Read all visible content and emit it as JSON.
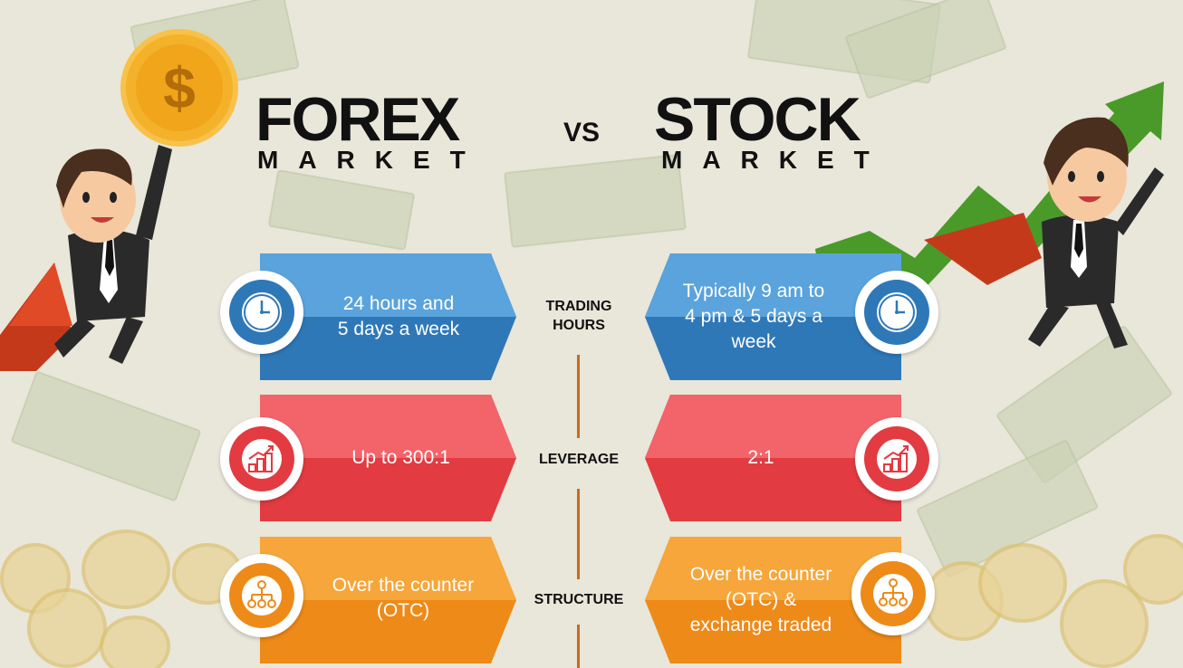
{
  "header": {
    "left_title": "FOREX",
    "left_subtitle": "MARKET",
    "vs": "VS",
    "right_title": "STOCK",
    "right_subtitle": "MARKET"
  },
  "rows": [
    {
      "label_line1": "TRADING",
      "label_line2": "HOURS",
      "icon": "clock-icon",
      "forex": "24 hours and\n5 days a week",
      "stock": "Typically 9 am to\n4 pm & 5 days a\nweek"
    },
    {
      "label_line1": "LEVERAGE",
      "label_line2": "",
      "icon": "growth-chart-icon",
      "forex": "Up to 300:1",
      "stock": "2:1"
    },
    {
      "label_line1": "STRUCTURE",
      "label_line2": "",
      "icon": "hierarchy-icon",
      "forex": "Over the counter\n(OTC)",
      "stock": "Over the counter\n(OTC) &\nexchange traded"
    }
  ],
  "colors": {
    "blue_light": "#5aa3dc",
    "blue_dark": "#2f78b8",
    "red_light": "#f2646a",
    "red_dark": "#e23b41",
    "orange_light": "#f6a63a",
    "orange_dark": "#ee8a18",
    "divider": "#cc6a1c",
    "coin": "#f4b12a",
    "arrow": "#4a9a2a"
  },
  "decorations": {
    "left_character": "businessman-with-coin",
    "right_character": "businessman-with-growth-arrow",
    "coin_symbol": "$"
  }
}
